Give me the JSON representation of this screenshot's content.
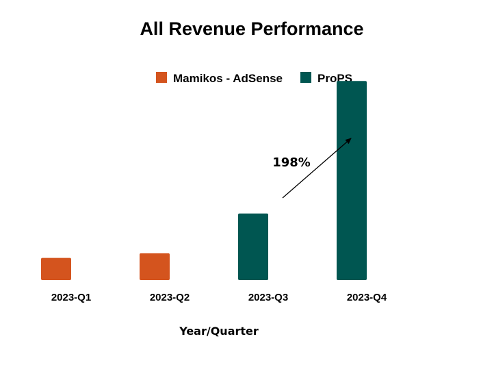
{
  "chart_data": {
    "type": "bar",
    "title": "All Revenue Performance",
    "xlabel": "Year/Quarter",
    "ylabel": "",
    "categories": [
      "2023-Q1",
      "2023-Q2",
      "2023-Q3",
      "2023-Q4"
    ],
    "series": [
      {
        "name": "Mamikos - AdSense",
        "color": "#d4541e",
        "values": [
          34,
          41,
          null,
          null
        ]
      },
      {
        "name": "ProPS",
        "color": "#005651",
        "values": [
          null,
          null,
          102,
          305
        ]
      }
    ],
    "ylim": [
      0,
      320
    ],
    "grid": false,
    "legend_position": "top-right",
    "annotations": [
      {
        "text": "198%",
        "type": "arrow",
        "from_category": "2023-Q3",
        "to_category": "2023-Q4"
      }
    ]
  }
}
